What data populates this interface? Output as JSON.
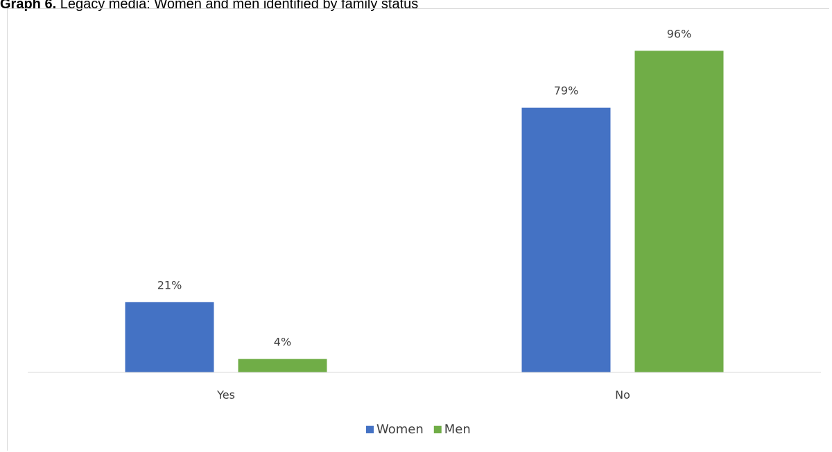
{
  "figure": {
    "title_prefix": "Graph 6.",
    "title_text": " Legacy media: Women and men identified by family status"
  },
  "chart_data": {
    "type": "bar",
    "categories": [
      "Yes",
      "No"
    ],
    "series": [
      {
        "name": "Women",
        "values": [
          21,
          79
        ],
        "color": "#4472c4"
      },
      {
        "name": "Men",
        "values": [
          4,
          96
        ],
        "color": "#70ad47"
      }
    ],
    "value_labels": [
      [
        "21%",
        "79%"
      ],
      [
        "4%",
        "96%"
      ]
    ],
    "unit": "%",
    "ylim": [
      0,
      100
    ],
    "grid": false,
    "legend_position": "bottom",
    "axis_color": "#d9d9d9",
    "text_color": "#404040"
  }
}
